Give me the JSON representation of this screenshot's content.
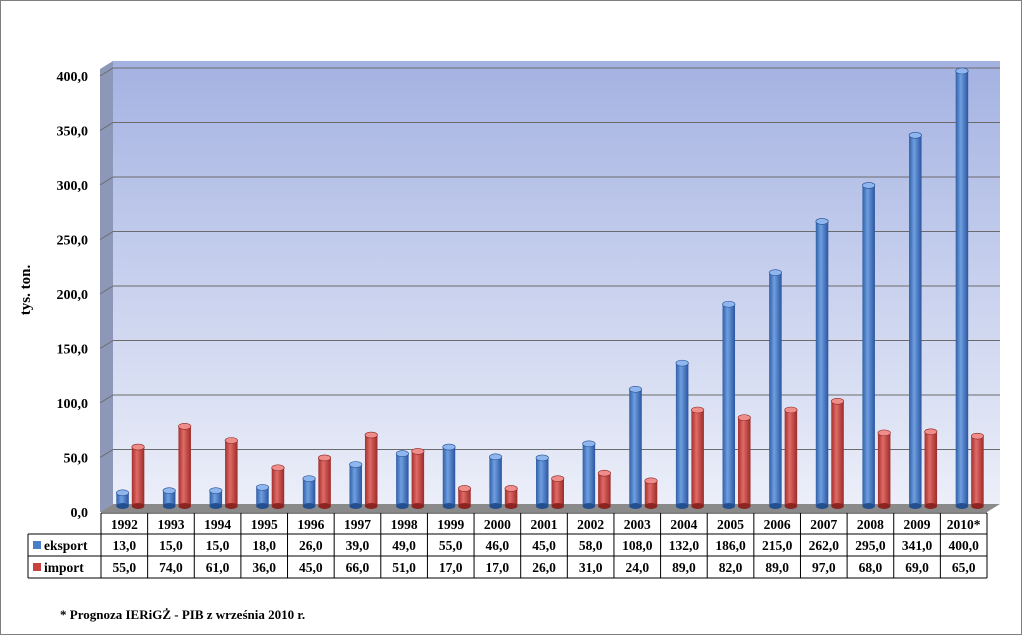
{
  "chart_data": {
    "type": "bar",
    "ylabel": "tys. ton.",
    "ylim": [
      0,
      400
    ],
    "y_ticks": [
      "0,0",
      "50,0",
      "100,0",
      "150,0",
      "200,0",
      "250,0",
      "300,0",
      "350,0",
      "400,0"
    ],
    "categories": [
      "1992",
      "1993",
      "1994",
      "1995",
      "1996",
      "1997",
      "1998",
      "1999",
      "2000",
      "2001",
      "2002",
      "2003",
      "2004",
      "2005",
      "2006",
      "2007",
      "2008",
      "2009",
      "2010*"
    ],
    "series": [
      {
        "name": "eksport",
        "color": "#4a7ec9",
        "values": [
          13,
          15,
          15,
          18,
          26,
          39,
          49,
          55,
          46,
          45,
          58,
          108,
          132,
          186,
          215,
          262,
          295,
          341,
          400
        ],
        "labels": [
          "13,0",
          "15,0",
          "15,0",
          "18,0",
          "26,0",
          "39,0",
          "49,0",
          "55,0",
          "46,0",
          "45,0",
          "58,0",
          "108,0",
          "132,0",
          "186,0",
          "215,0",
          "262,0",
          "295,0",
          "341,0",
          "400,0"
        ]
      },
      {
        "name": "import",
        "color": "#c8433f",
        "values": [
          55,
          74,
          61,
          36,
          45,
          66,
          51,
          17,
          17,
          26,
          31,
          24,
          89,
          82,
          89,
          97,
          68,
          69,
          65
        ],
        "labels": [
          "55,0",
          "74,0",
          "61,0",
          "36,0",
          "45,0",
          "66,0",
          "51,0",
          "17,0",
          "17,0",
          "26,0",
          "31,0",
          "24,0",
          "89,0",
          "82,0",
          "89,0",
          "97,0",
          "68,0",
          "69,0",
          "65,0"
        ]
      }
    ],
    "grid": true,
    "data_table": true,
    "footnote": "* Prognoza IERiGŻ - PIB z września 2010 r."
  }
}
